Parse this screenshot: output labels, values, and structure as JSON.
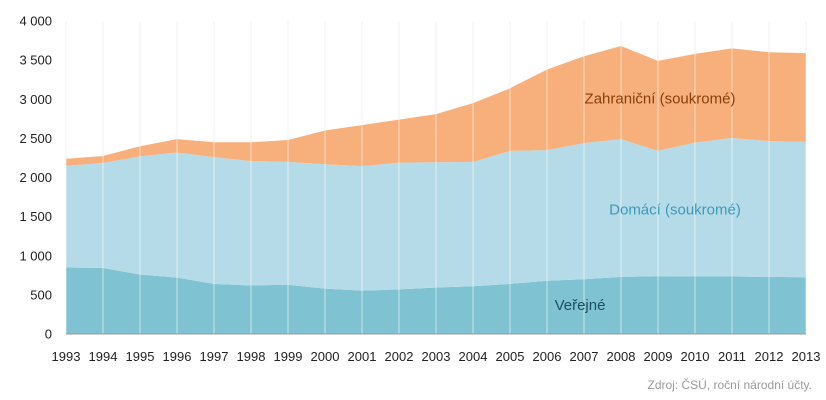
{
  "chart_data": {
    "type": "area",
    "stacked": true,
    "x": [
      1993,
      1994,
      1995,
      1996,
      1997,
      1998,
      1999,
      2000,
      2001,
      2002,
      2003,
      2004,
      2005,
      2006,
      2007,
      2008,
      2009,
      2010,
      2011,
      2012,
      2013
    ],
    "ylim": [
      0,
      4000
    ],
    "yticks": [
      0,
      500,
      1000,
      1500,
      2000,
      2500,
      3000,
      3500,
      4000
    ],
    "ytick_labels": [
      "0",
      "500",
      "1 000",
      "1 500",
      "2 000",
      "2 500",
      "3 000",
      "3 500",
      "4 000"
    ],
    "xtick_labels": [
      "1993",
      "1994",
      "1995",
      "1996",
      "1997",
      "1998",
      "1999",
      "2000",
      "2001",
      "2002",
      "2003",
      "2004",
      "2005",
      "2006",
      "2007",
      "2008",
      "2009",
      "2010",
      "2011",
      "2012",
      "2013"
    ],
    "grid": "vertical",
    "series": [
      {
        "name": "Veřejné",
        "color": "#7fc3d3",
        "label_color": "#1f4e62",
        "values": [
          850,
          845,
          760,
          720,
          640,
          620,
          630,
          580,
          555,
          570,
          595,
          610,
          640,
          680,
          700,
          730,
          740,
          735,
          735,
          730,
          725
        ]
      },
      {
        "name": "Domácí (soukromé)",
        "color": "#b5dbe8",
        "label_color": "#3f9ab9",
        "values": [
          1300,
          1340,
          1510,
          1600,
          1620,
          1590,
          1570,
          1590,
          1590,
          1620,
          1600,
          1590,
          1700,
          1670,
          1740,
          1760,
          1600,
          1710,
          1770,
          1735,
          1730
        ]
      },
      {
        "name": "Zahraniční (soukromé)",
        "color": "#f7b07c",
        "label_color": "#8a3f0a",
        "values": [
          90,
          90,
          130,
          170,
          190,
          240,
          280,
          430,
          525,
          550,
          615,
          750,
          800,
          1030,
          1110,
          1190,
          1150,
          1135,
          1145,
          1135,
          1135
        ]
      }
    ]
  },
  "source_note": "Zdroj: ČSÚ, roční národní účty."
}
